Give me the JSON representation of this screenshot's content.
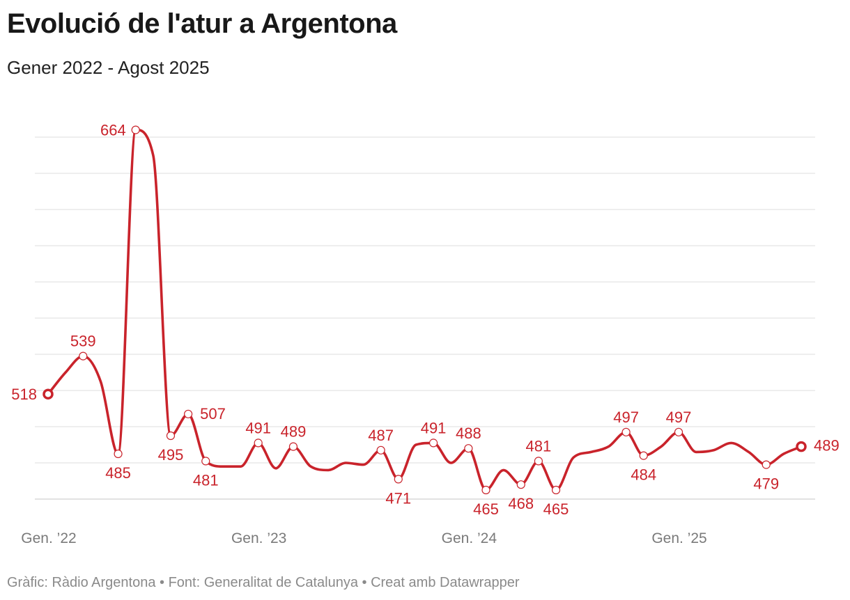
{
  "title": "Evolució de l'atur a Argentona",
  "subtitle": "Gener 2022 - Agost 2025",
  "footer": "Gràfic: Ràdio Argentona • Font: Generalitat de Catalunya • Creat amb Datawrapper",
  "colors": {
    "line": "#c9232b",
    "grid": "#e3e3e3",
    "axis_text": "#7a7a7a",
    "label": "#c9232b"
  },
  "chart_data": {
    "type": "line",
    "title": "Evolució de l'atur a Argentona",
    "subtitle": "Gener 2022 - Agost 2025",
    "xlabel": "",
    "ylabel": "",
    "ylim": [
      460,
      660
    ],
    "grid": true,
    "x_tick_labels": [
      "Gen. ’22",
      "Gen. ’23",
      "Gen. ’24",
      "Gen. ’25"
    ],
    "x": [
      "2022-01",
      "2022-02",
      "2022-03",
      "2022-04",
      "2022-05",
      "2022-06",
      "2022-07",
      "2022-08",
      "2022-09",
      "2022-10",
      "2022-11",
      "2022-12",
      "2023-01",
      "2023-02",
      "2023-03",
      "2023-04",
      "2023-05",
      "2023-06",
      "2023-07",
      "2023-08",
      "2023-09",
      "2023-10",
      "2023-11",
      "2023-12",
      "2024-01",
      "2024-02",
      "2024-03",
      "2024-04",
      "2024-05",
      "2024-06",
      "2024-07",
      "2024-08",
      "2024-09",
      "2024-10",
      "2024-11",
      "2024-12",
      "2025-01",
      "2025-02",
      "2025-03",
      "2025-04",
      "2025-05",
      "2025-06",
      "2025-07",
      "2025-08"
    ],
    "series": [
      {
        "values": [
          518,
          530,
          539,
          525,
          485,
          664,
          650,
          495,
          507,
          481,
          478,
          478,
          491,
          477,
          489,
          478,
          476,
          480,
          479,
          487,
          471,
          490,
          491,
          480,
          488,
          465,
          476,
          468,
          481,
          465,
          483,
          486,
          489,
          497,
          484,
          489,
          497,
          486,
          487,
          491,
          486,
          479,
          485,
          489
        ],
        "labels": [
          {
            "i": 0,
            "text": "518"
          },
          {
            "i": 2,
            "text": "539"
          },
          {
            "i": 4,
            "text": "485"
          },
          {
            "i": 5,
            "text": "664"
          },
          {
            "i": 7,
            "text": "495"
          },
          {
            "i": 8,
            "text": "507"
          },
          {
            "i": 9,
            "text": "481"
          },
          {
            "i": 12,
            "text": "491"
          },
          {
            "i": 14,
            "text": "489"
          },
          {
            "i": 19,
            "text": "487"
          },
          {
            "i": 20,
            "text": "471"
          },
          {
            "i": 22,
            "text": "491"
          },
          {
            "i": 24,
            "text": "488"
          },
          {
            "i": 25,
            "text": "465"
          },
          {
            "i": 27,
            "text": "468"
          },
          {
            "i": 28,
            "text": "481"
          },
          {
            "i": 29,
            "text": "465"
          },
          {
            "i": 33,
            "text": "497"
          },
          {
            "i": 34,
            "text": "484"
          },
          {
            "i": 36,
            "text": "497"
          },
          {
            "i": 41,
            "text": "479"
          },
          {
            "i": 43,
            "text": "489"
          }
        ]
      }
    ]
  }
}
